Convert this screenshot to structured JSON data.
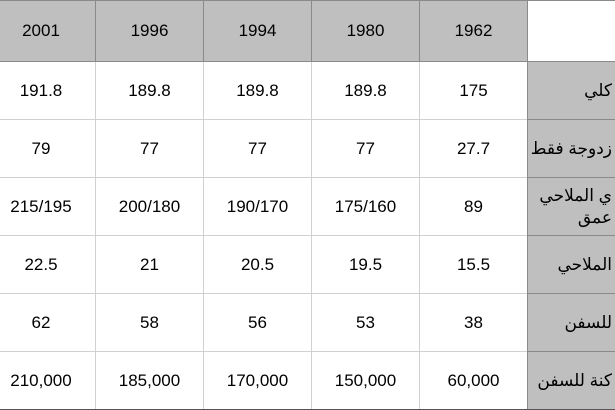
{
  "table": {
    "header": [
      "1962",
      "1980",
      "1994",
      "1996",
      "2001"
    ],
    "rows": [
      {
        "label": [
          "كلي"
        ],
        "cells": [
          "175",
          "189.8",
          "189.8",
          "189.8",
          "191.8"
        ]
      },
      {
        "label": [
          "زدوجة فقط"
        ],
        "cells": [
          "27.7",
          "77",
          "77",
          "77",
          "79"
        ]
      },
      {
        "label": [
          "ي الملاحي",
          "عمق"
        ],
        "cells": [
          "89",
          "175/160",
          "190/170",
          "200/180",
          "215/195"
        ]
      },
      {
        "label": [
          "الملاحي"
        ],
        "cells": [
          "15.5",
          "19.5",
          "20.5",
          "21",
          "22.5"
        ]
      },
      {
        "label": [
          "للسفن"
        ],
        "cells": [
          "38",
          "53",
          "56",
          "58",
          "62"
        ]
      },
      {
        "label": [
          "كنة للسفن"
        ],
        "cells": [
          "60,000",
          "150,000",
          "170,000",
          "185,000",
          "210,000"
        ]
      }
    ]
  }
}
